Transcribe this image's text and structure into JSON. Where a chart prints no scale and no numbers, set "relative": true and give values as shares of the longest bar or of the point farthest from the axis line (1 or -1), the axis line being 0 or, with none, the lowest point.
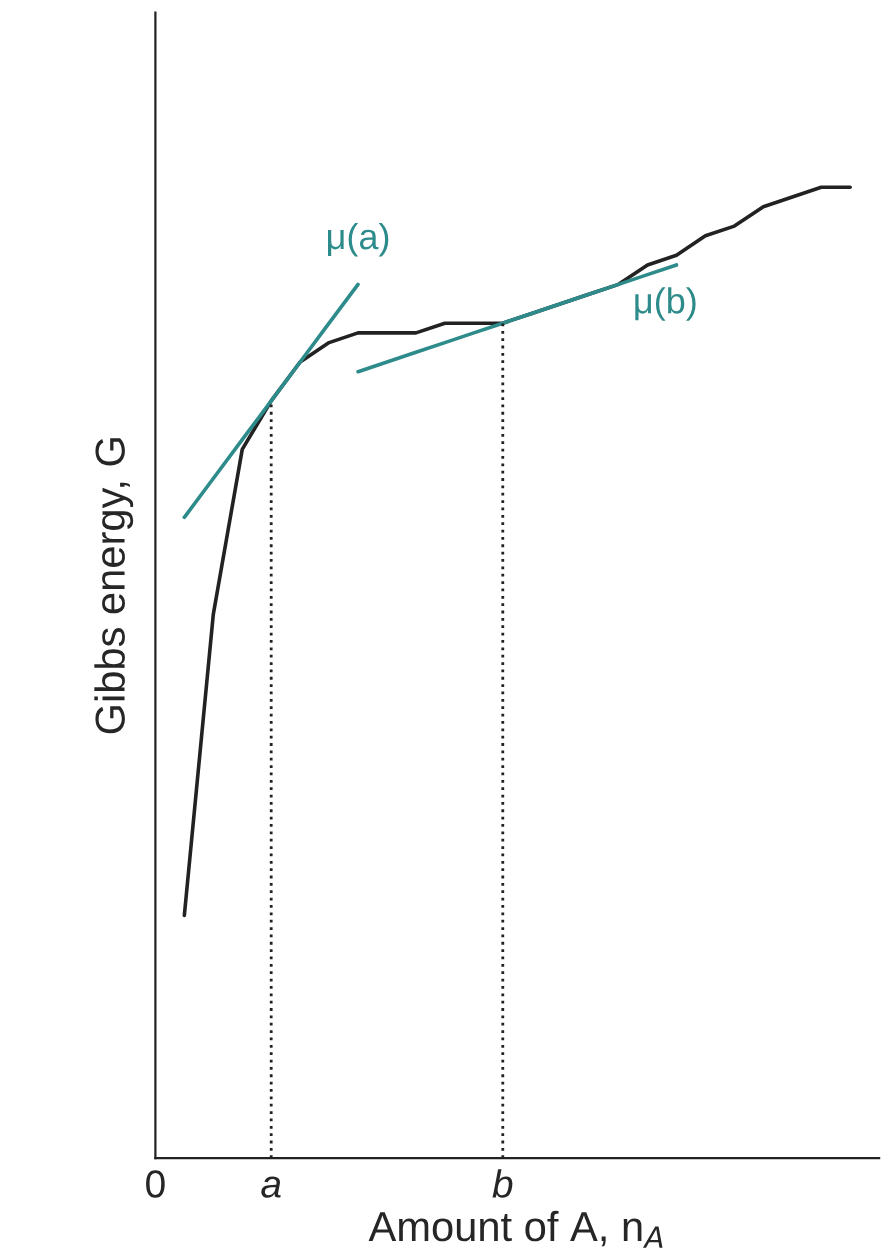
{
  "chart_data": {
    "type": "line",
    "relative": true,
    "xlabel": "Amount of A, n$_{A}$",
    "ylabel": "Gibbs energy, G",
    "categories": [
      "0",
      null,
      null,
      null,
      "a",
      null,
      null,
      null,
      null,
      null,
      null,
      null,
      "b",
      null,
      null,
      null,
      null,
      null,
      null,
      null,
      null,
      null,
      null,
      null,
      null
    ],
    "grid": false,
    "legend": false,
    "marker": "none",
    "series": [
      {
        "color": "#222222",
        "line_style": "solid",
        "values": [
          null,
          0.25,
          0.56,
          0.73,
          0.78,
          0.82,
          0.84,
          0.85,
          0.85,
          0.85,
          0.86,
          0.86,
          0.86,
          0.87,
          0.88,
          0.89,
          0.9,
          0.92,
          0.93,
          0.95,
          0.96,
          0.98,
          0.99,
          1.0,
          1.0
        ]
      },
      {
        "color": "#2e8b8b",
        "line_style": "solid",
        "values": [
          null,
          0.66,
          0.7,
          0.74,
          0.78,
          0.82,
          0.86,
          0.9,
          null,
          null,
          null,
          null,
          null,
          null,
          null,
          null,
          null,
          null,
          null,
          null,
          null,
          null,
          null,
          null,
          null
        ]
      },
      {
        "color": "#2e8b8b",
        "line_style": "solid",
        "values": [
          null,
          null,
          null,
          null,
          null,
          null,
          null,
          0.81,
          0.82,
          0.83,
          0.84,
          0.85,
          0.86,
          0.87,
          0.88,
          0.89,
          0.9,
          0.91,
          0.92,
          null,
          null,
          null,
          null,
          null,
          null
        ]
      }
    ],
    "ref_lines": [
      {
        "axis": "x",
        "value": "a",
        "color": "#222222",
        "line_style": "dotted"
      },
      {
        "axis": "x",
        "value": "b",
        "color": "#222222",
        "line_style": "dotted"
      }
    ],
    "annotations": [
      "μ(a)",
      "μ(b)"
    ]
  }
}
